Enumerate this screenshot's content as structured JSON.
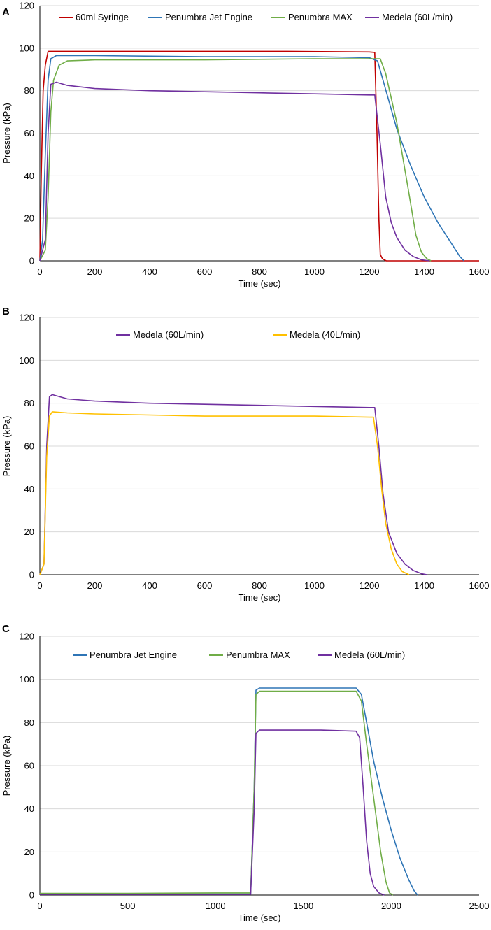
{
  "chart_data": [
    {
      "panel": "A",
      "type": "line",
      "xlabel": "Time (sec)",
      "ylabel": "Pressure (kPa)",
      "xlim": [
        0,
        1600
      ],
      "ylim": [
        0,
        120
      ],
      "xticks": [
        0,
        200,
        400,
        600,
        800,
        1000,
        1200,
        1400,
        1600
      ],
      "yticks": [
        0,
        20,
        40,
        60,
        80,
        100,
        120
      ],
      "grid": true,
      "legend_position": "top",
      "series": [
        {
          "name": "60ml Syringe",
          "color": "#c00000",
          "x": [
            0,
            5,
            12,
            20,
            30,
            100,
            300,
            600,
            900,
            1200,
            1220,
            1228,
            1235,
            1240,
            1248,
            1262,
            1600
          ],
          "y": [
            0,
            40,
            80,
            92,
            98.5,
            98.5,
            98.5,
            98.5,
            98.5,
            98.2,
            98,
            60,
            20,
            3,
            1,
            0,
            0
          ]
        },
        {
          "name": "Penumbra Jet Engine",
          "color": "#2e75b6",
          "x": [
            0,
            10,
            20,
            30,
            40,
            60,
            200,
            600,
            1000,
            1200,
            1230,
            1250,
            1300,
            1350,
            1400,
            1450,
            1500,
            1530,
            1545
          ],
          "y": [
            0,
            10,
            50,
            85,
            95,
            96.5,
            96.5,
            96,
            96,
            95.5,
            94,
            85,
            62,
            45,
            30,
            18,
            8,
            2,
            0
          ]
        },
        {
          "name": "Penumbra MAX",
          "color": "#70ad47",
          "x": [
            0,
            20,
            30,
            40,
            50,
            70,
            100,
            200,
            600,
            1000,
            1200,
            1240,
            1260,
            1300,
            1340,
            1370,
            1390,
            1410,
            1425
          ],
          "y": [
            0,
            5,
            30,
            70,
            85,
            92,
            94,
            94.5,
            94.5,
            95,
            95,
            95,
            88,
            65,
            35,
            12,
            4,
            1,
            0
          ]
        },
        {
          "name": "Medela (60L/min)",
          "color": "#7030a0",
          "x": [
            0,
            20,
            30,
            40,
            60,
            100,
            200,
            400,
            600,
            800,
            1000,
            1200,
            1220,
            1240,
            1260,
            1280,
            1300,
            1330,
            1360,
            1390,
            1420
          ],
          "y": [
            0,
            10,
            60,
            83,
            84,
            82.5,
            81,
            80,
            79.5,
            79,
            78.5,
            78,
            78,
            55,
            30,
            18,
            11,
            5,
            2,
            0.5,
            0
          ]
        }
      ]
    },
    {
      "panel": "B",
      "type": "line",
      "xlabel": "Time (sec)",
      "ylabel": "Pressure (kPa)",
      "xlim": [
        0,
        1600
      ],
      "ylim": [
        0,
        120
      ],
      "xticks": [
        0,
        200,
        400,
        600,
        800,
        1000,
        1200,
        1400,
        1600
      ],
      "yticks": [
        0,
        20,
        40,
        60,
        80,
        100,
        120
      ],
      "grid": true,
      "legend_position": "top",
      "series": [
        {
          "name": "Medela (60L/min)",
          "color": "#7030a0",
          "x": [
            0,
            15,
            25,
            35,
            45,
            100,
            200,
            400,
            600,
            800,
            1000,
            1200,
            1220,
            1235,
            1250,
            1270,
            1300,
            1330,
            1360,
            1390,
            1410
          ],
          "y": [
            0,
            5,
            60,
            83,
            84,
            82,
            81,
            80,
            79.5,
            79,
            78.5,
            78,
            78,
            60,
            38,
            20,
            10,
            5,
            2,
            0.5,
            0
          ]
        },
        {
          "name": "Medela (40L/min)",
          "color": "#ffc000",
          "x": [
            0,
            15,
            25,
            35,
            45,
            100,
            200,
            400,
            600,
            800,
            1000,
            1200,
            1215,
            1230,
            1245,
            1260,
            1280,
            1300,
            1320,
            1345
          ],
          "y": [
            0,
            5,
            55,
            74,
            76,
            75.5,
            75,
            74.5,
            74,
            74,
            74,
            73.5,
            73.5,
            60,
            40,
            24,
            12,
            5,
            1.5,
            0
          ]
        }
      ]
    },
    {
      "panel": "C",
      "type": "line",
      "xlabel": "Time (sec)",
      "ylabel": "Pressure (kPa)",
      "xlim": [
        0,
        2500
      ],
      "ylim": [
        0,
        120
      ],
      "xticks": [
        0,
        500,
        1000,
        1500,
        2000,
        2500
      ],
      "yticks": [
        0,
        20,
        40,
        60,
        80,
        100,
        120
      ],
      "grid": true,
      "legend_position": "top",
      "series": [
        {
          "name": "Penumbra Jet Engine",
          "color": "#2e75b6",
          "x": [
            0,
            500,
            1000,
            1200,
            1220,
            1230,
            1250,
            1400,
            1600,
            1800,
            1830,
            1860,
            1900,
            1950,
            2000,
            2050,
            2100,
            2130,
            2150
          ],
          "y": [
            0.5,
            0.5,
            0.5,
            0.5,
            50,
            95,
            96,
            96,
            96,
            96,
            93,
            80,
            62,
            45,
            30,
            17,
            7,
            2,
            0
          ]
        },
        {
          "name": "Penumbra MAX",
          "color": "#70ad47",
          "x": [
            0,
            500,
            1000,
            1200,
            1220,
            1230,
            1250,
            1400,
            1600,
            1800,
            1830,
            1860,
            1900,
            1940,
            1970,
            1990,
            2010
          ],
          "y": [
            0.8,
            0.8,
            1,
            1,
            50,
            93,
            94.5,
            94.5,
            94.5,
            94.5,
            90,
            70,
            45,
            20,
            6,
            1,
            0
          ]
        },
        {
          "name": "Medela (60L/min)",
          "color": "#7030a0",
          "x": [
            0,
            500,
            1000,
            1200,
            1220,
            1230,
            1250,
            1400,
            1600,
            1800,
            1820,
            1840,
            1860,
            1880,
            1900,
            1930,
            1960
          ],
          "y": [
            0.3,
            0.3,
            0.3,
            0.3,
            40,
            75,
            76.5,
            76.5,
            76.5,
            76,
            73,
            50,
            25,
            10,
            4,
            1,
            0
          ]
        }
      ]
    }
  ]
}
